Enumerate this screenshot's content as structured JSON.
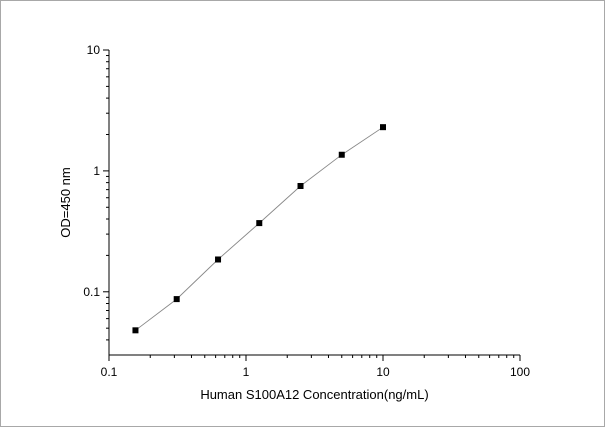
{
  "chart_data": {
    "type": "scatter",
    "xlabel": "Human S100A12 Concentration(ng/mL)",
    "ylabel": "OD=450 nm",
    "x_scale": "log",
    "y_scale": "log",
    "xlim": [
      0.1,
      100
    ],
    "ylim": [
      0.03,
      10
    ],
    "x_ticks": [
      "0.1",
      "1",
      "10",
      "100"
    ],
    "y_ticks": [
      "0.1",
      "1",
      "10"
    ],
    "grid": false,
    "legend": "none",
    "marker_color": "#000000",
    "line_color": "#888888",
    "series": [
      {
        "x": [
          0.156,
          0.312,
          0.625,
          1.25,
          2.5,
          5,
          10
        ],
        "y": [
          0.048,
          0.087,
          0.185,
          0.37,
          0.75,
          1.36,
          2.3
        ]
      }
    ]
  }
}
